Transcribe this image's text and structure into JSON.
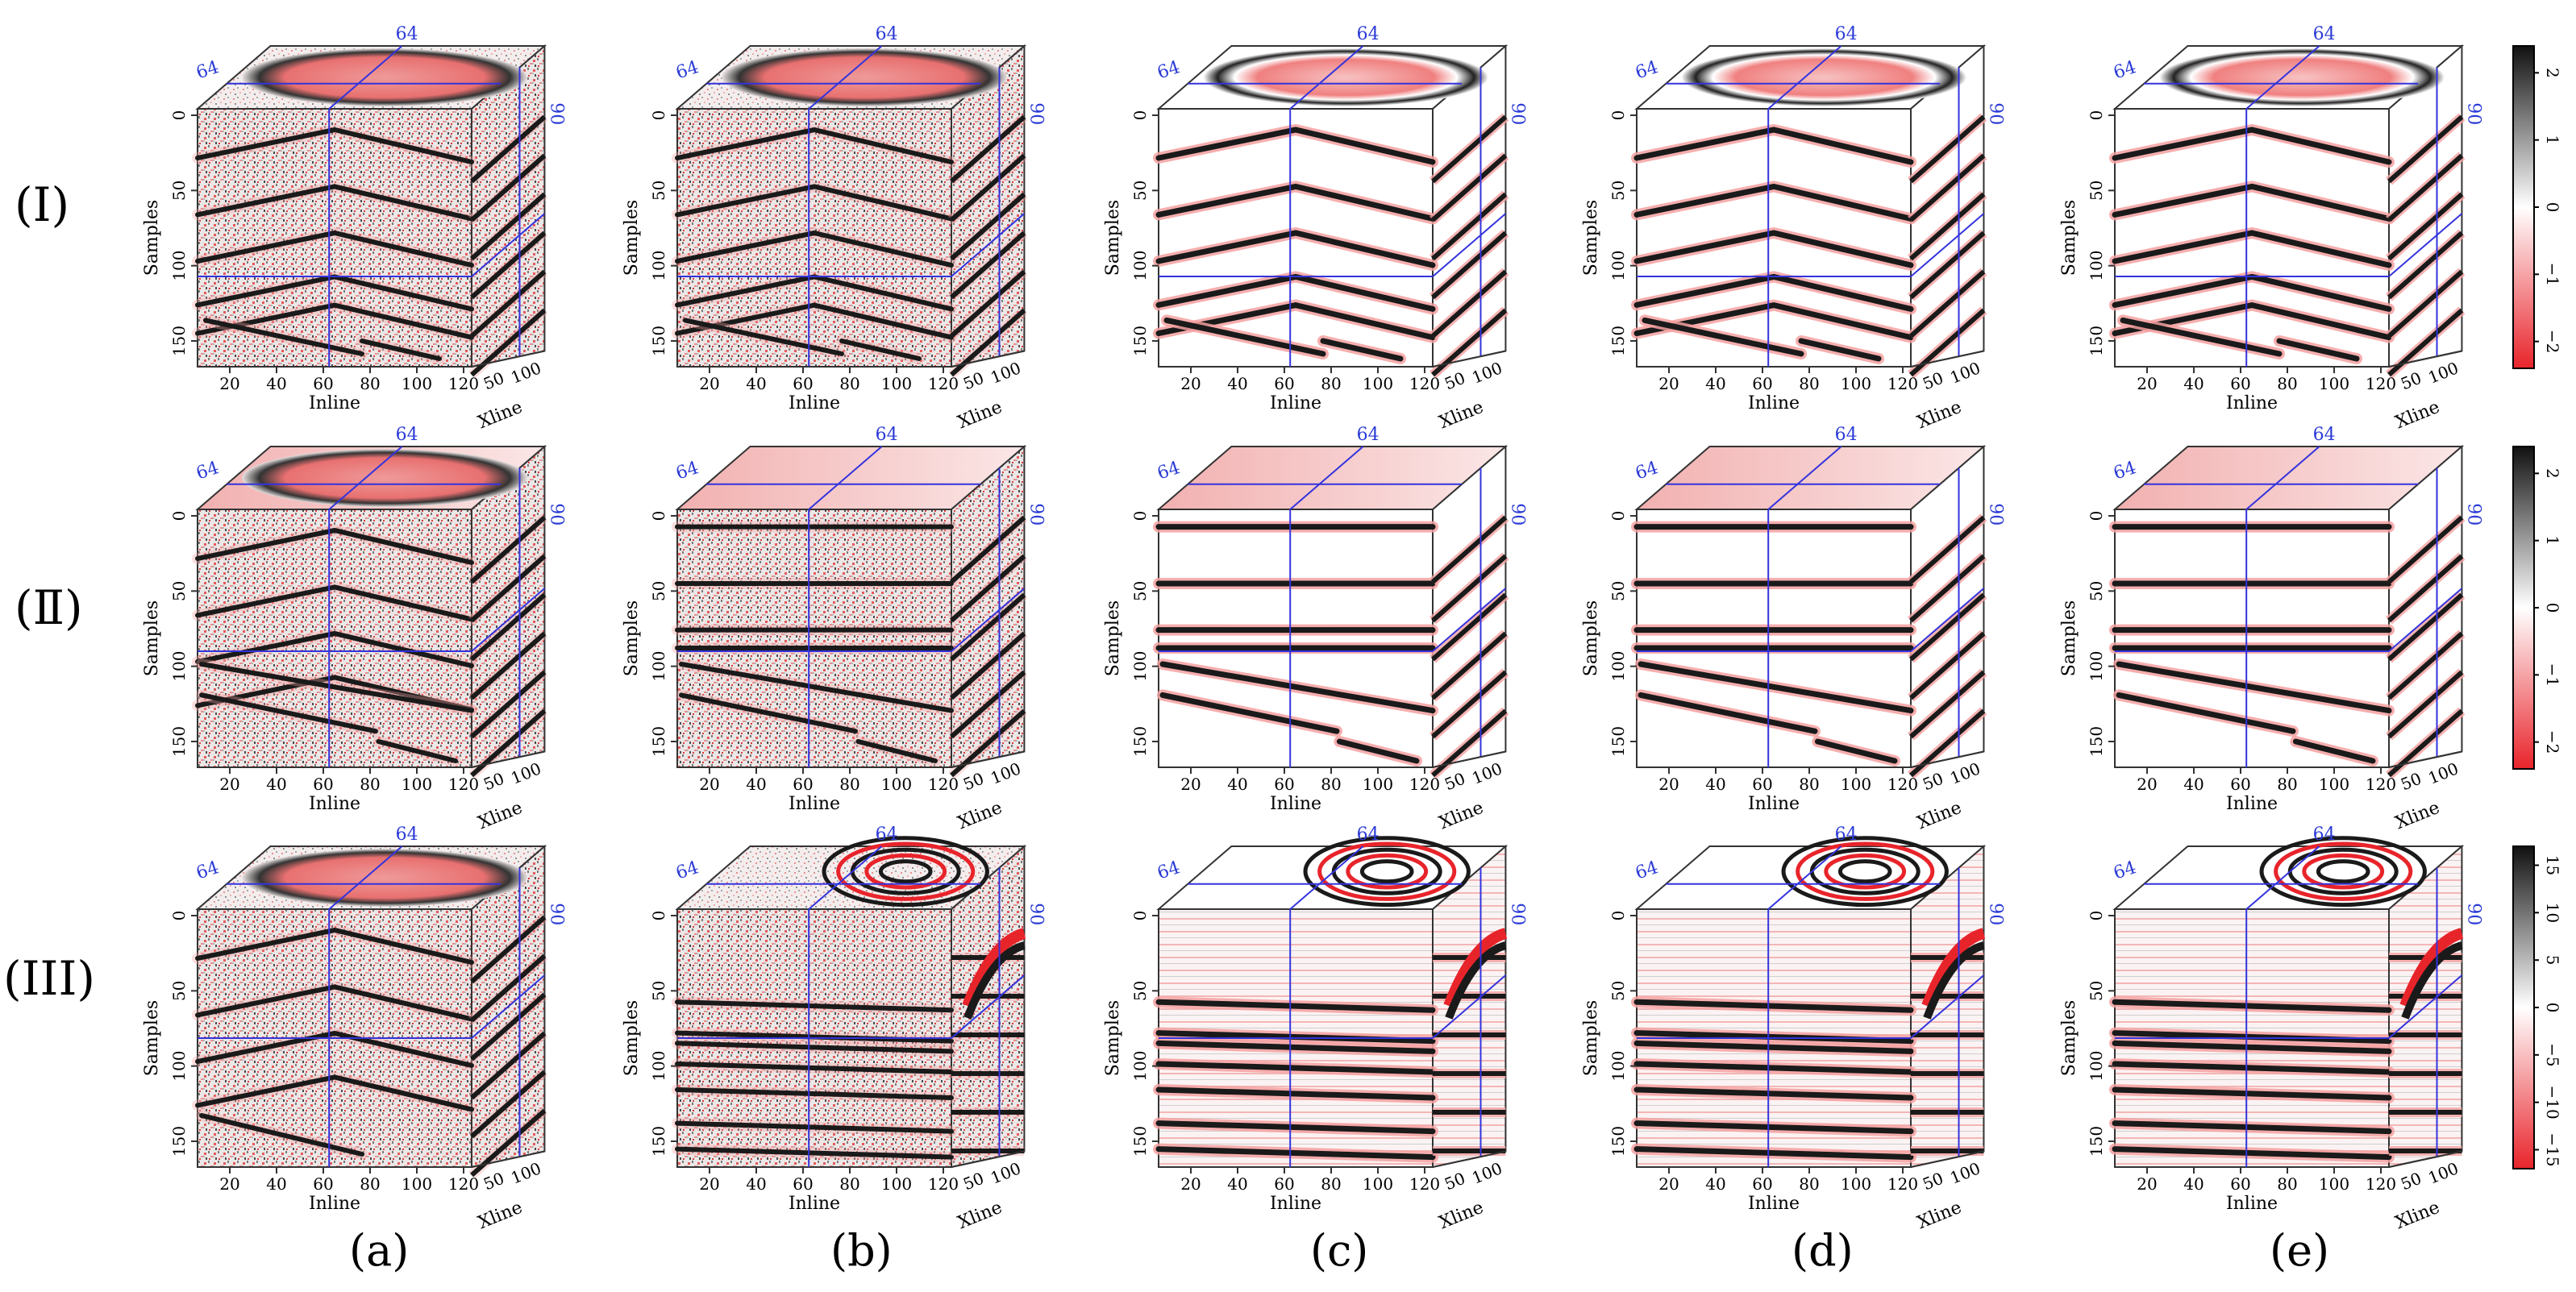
{
  "figure": {
    "row_labels": [
      "(Ⅰ)",
      "(Ⅱ)",
      "(III)"
    ],
    "column_labels": [
      "(a)",
      "(b)",
      "(c)",
      "(d)",
      "(e)"
    ],
    "axes": {
      "inline_label": "Inline",
      "samples_label": "Samples",
      "xline_label": "Xline",
      "inline_ticks": [
        "20",
        "40",
        "60",
        "80",
        "100",
        "120"
      ],
      "samples_ticks": [
        "0",
        "50",
        "100",
        "150"
      ],
      "xline_ticks": [
        "50",
        "100"
      ],
      "slice_inline_marker": "64",
      "slice_top_marker": "64",
      "slice_xline_marker": "90"
    },
    "colorbars": [
      {
        "ticks": [
          "2",
          "1",
          "0",
          "−1",
          "−2"
        ],
        "range": [
          -2.4,
          2.4
        ]
      },
      {
        "ticks": [
          "2",
          "1",
          "0",
          "−1",
          "−2"
        ],
        "range": [
          -2.4,
          2.4
        ]
      },
      {
        "ticks": [
          "15",
          "10",
          "5",
          "0",
          "−5",
          "−10",
          "−15"
        ],
        "range": [
          -17,
          17
        ]
      }
    ],
    "colors": {
      "positive": "#1a1a1a",
      "negative": "#e8242b",
      "slice_line": "#3333dd",
      "marker_text": "#2b3bd6",
      "frame": "#333333"
    }
  }
}
